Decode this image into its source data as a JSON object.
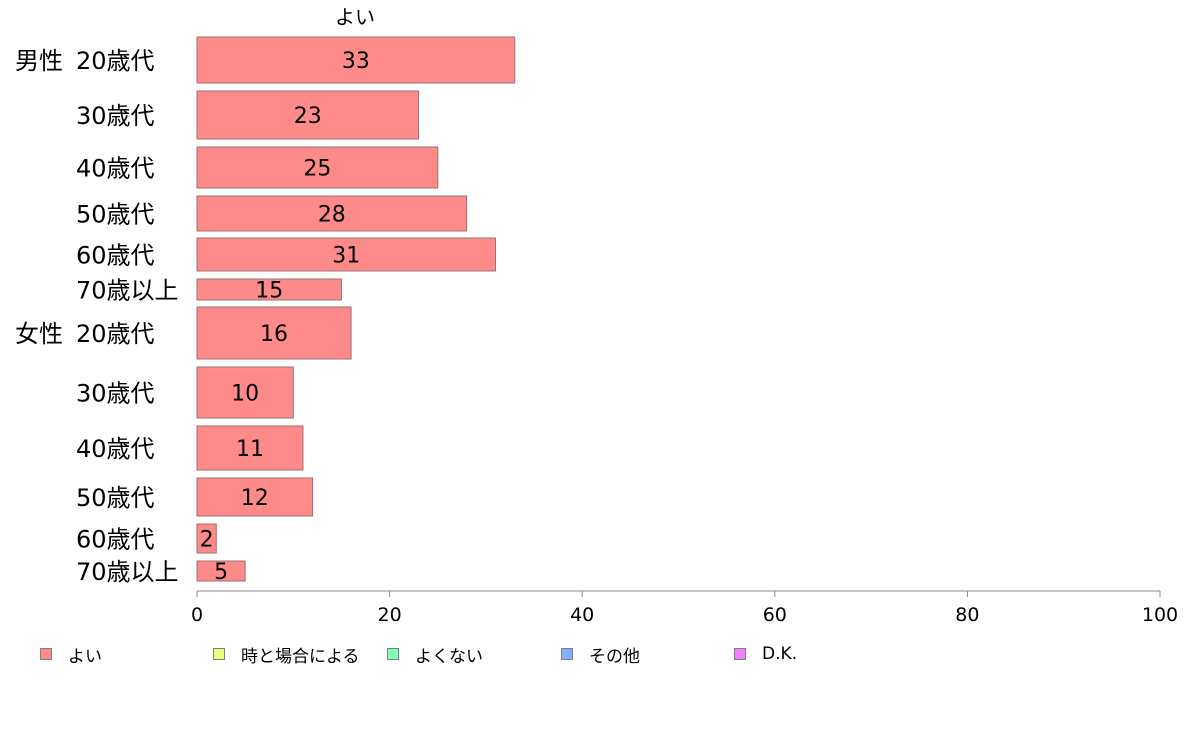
{
  "chart_data": {
    "type": "bar",
    "orientation": "horizontal",
    "title": "よい",
    "groups": [
      {
        "label": "男性",
        "categories": [
          "20歳代",
          "30歳代",
          "40歳代",
          "50歳代",
          "60歳代",
          "70歳以上"
        ]
      },
      {
        "label": "女性",
        "categories": [
          "20歳代",
          "30歳代",
          "40歳代",
          "50歳代",
          "60歳代",
          "70歳以上"
        ]
      }
    ],
    "series": [
      {
        "name": "よい",
        "values": [
          33,
          23,
          25,
          28,
          31,
          15,
          16,
          10,
          11,
          12,
          2,
          5
        ]
      }
    ],
    "xlim": [
      0,
      100
    ],
    "xticks": [
      0,
      20,
      40,
      60,
      80,
      100
    ],
    "grid": false,
    "legend": {
      "position": "bottom",
      "entries": [
        {
          "label": "よい",
          "color": "#ff8a8a"
        },
        {
          "label": "時と場合による",
          "color": "#f0ff80"
        },
        {
          "label": "よくない",
          "color": "#80ffb0"
        },
        {
          "label": "その他",
          "color": "#80b0ff"
        },
        {
          "label": "D.K.",
          "color": "#f080ff"
        }
      ]
    },
    "bar_color": "#ff8a8a"
  }
}
